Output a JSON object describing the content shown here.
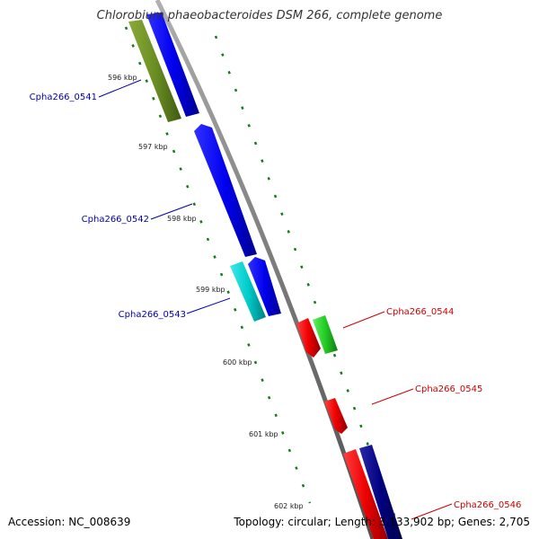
{
  "title": "Chlorobium phaeobacteroides DSM 266, complete genome",
  "footer": {
    "accession": "Accession: NC_008639",
    "summary": "Topology: circular; Length: 3,133,902 bp; Genes: 2,705"
  },
  "colors": {
    "backbone": "#888888",
    "forward_cds": "#0000e6",
    "reverse_cds": "#e60000",
    "olive": "#6b8e23",
    "cyan": "#00cccc",
    "green": "#22cc22",
    "navy": "#000080",
    "tick": "#1a7a1a",
    "forward_label": "#0000aa",
    "reverse_label": "#cc0000"
  },
  "kbp_labels": [
    "596 kbp",
    "597 kbp",
    "598 kbp",
    "599 kbp",
    "600 kbp",
    "601 kbp",
    "602 kbp"
  ],
  "forward_genes": [
    {
      "label": "Cpha266_0541"
    },
    {
      "label": "Cpha266_0542"
    },
    {
      "label": "Cpha266_0543"
    }
  ],
  "reverse_genes": [
    {
      "label": "Cpha266_0544"
    },
    {
      "label": "Cpha266_0545"
    },
    {
      "label": "Cpha266_0546"
    }
  ]
}
